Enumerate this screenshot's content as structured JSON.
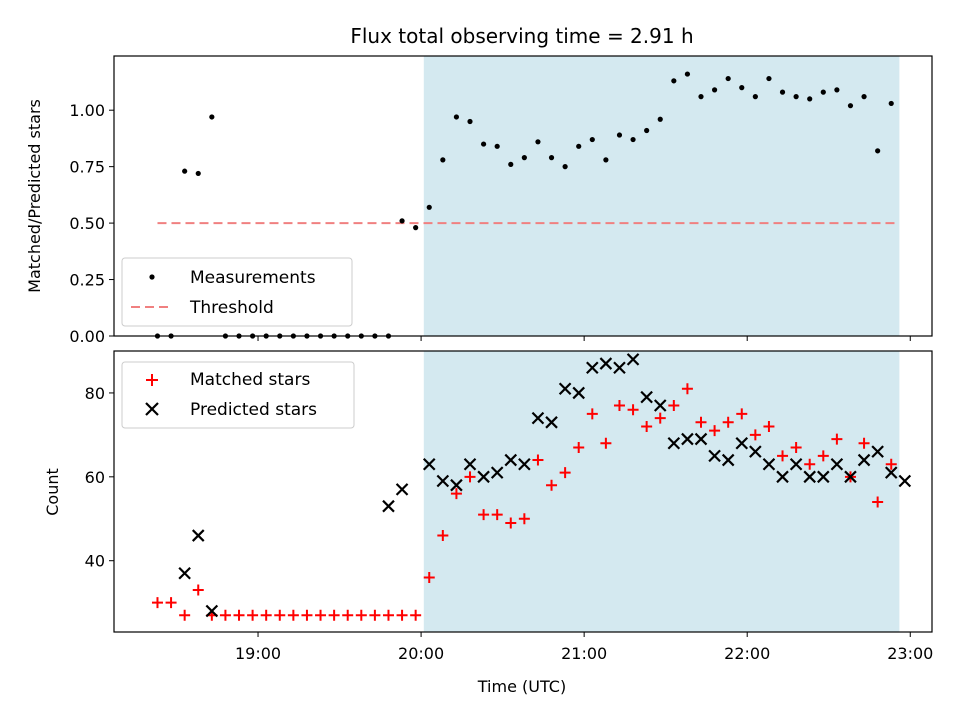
{
  "chart_data": [
    {
      "type": "scatter",
      "title": "Flux total observing time = 2.91 h",
      "xlabel": "",
      "ylabel": "Matched/Predicted stars",
      "xlim": [
        "18:07",
        "23:08"
      ],
      "ylim": [
        0,
        1.24
      ],
      "yticks": [
        0.0,
        0.25,
        0.5,
        0.75,
        1.0
      ],
      "ytick_labels": [
        "0.00",
        "0.25",
        "0.50",
        "0.75",
        "1.00"
      ],
      "grid": false,
      "legend": {
        "placement": "lower-left",
        "entries": [
          "Measurements",
          "Threshold"
        ]
      },
      "shaded_span": {
        "x_start": "20:01",
        "x_end": "22:56",
        "color": "#d4e9f0"
      },
      "threshold": {
        "name": "Threshold",
        "value": 0.5,
        "x_start": "18:23",
        "x_end": "22:56",
        "color": "#f08080"
      },
      "series": [
        {
          "name": "Measurements",
          "color": "#000000",
          "x": [
            "18:23",
            "18:28",
            "18:33",
            "18:38",
            "18:43",
            "18:48",
            "18:53",
            "18:58",
            "19:03",
            "19:08",
            "19:13",
            "19:18",
            "19:23",
            "19:28",
            "19:33",
            "19:38",
            "19:43",
            "19:48",
            "19:53",
            "19:58",
            "20:03",
            "20:08",
            "20:13",
            "20:18",
            "20:23",
            "20:28",
            "20:33",
            "20:38",
            "20:43",
            "20:48",
            "20:53",
            "20:58",
            "21:03",
            "21:08",
            "21:13",
            "21:18",
            "21:23",
            "21:28",
            "21:33",
            "21:38",
            "21:43",
            "21:48",
            "21:53",
            "21:58",
            "22:03",
            "22:08",
            "22:13",
            "22:18",
            "22:23",
            "22:28",
            "22:33",
            "22:38",
            "22:43",
            "22:48",
            "22:53"
          ],
          "y": [
            0.0,
            0.0,
            0.73,
            0.72,
            0.97,
            0.0,
            0.0,
            0.0,
            0.0,
            0.0,
            0.0,
            0.0,
            0.0,
            0.0,
            0.0,
            0.0,
            0.0,
            0.0,
            0.51,
            0.48,
            0.57,
            0.78,
            0.97,
            0.95,
            0.85,
            0.84,
            0.76,
            0.79,
            0.86,
            0.79,
            0.75,
            0.84,
            0.87,
            0.78,
            0.89,
            0.87,
            0.91,
            0.96,
            1.13,
            1.16,
            1.06,
            1.09,
            1.14,
            1.1,
            1.06,
            1.14,
            1.08,
            1.06,
            1.05,
            1.08,
            1.09,
            1.02,
            1.06,
            0.82,
            1.03
          ]
        }
      ]
    },
    {
      "type": "scatter",
      "title": "",
      "xlabel": "Time (UTC)",
      "ylabel": "Count",
      "xlim": [
        "18:07",
        "23:08"
      ],
      "ylim": [
        23,
        90
      ],
      "xticks": [
        "19:00",
        "20:00",
        "21:00",
        "22:00",
        "23:00"
      ],
      "yticks": [
        40,
        60,
        80
      ],
      "grid": false,
      "legend": {
        "placement": "top-left",
        "entries": [
          "Matched stars",
          "Predicted stars"
        ]
      },
      "shaded_span": {
        "x_start": "20:01",
        "x_end": "22:56",
        "color": "#d4e9f0"
      },
      "series": [
        {
          "name": "Matched stars",
          "marker": "+",
          "color": "#ff0000",
          "x": [
            "18:23",
            "18:28",
            "18:33",
            "18:38",
            "18:43",
            "18:48",
            "18:53",
            "18:58",
            "19:03",
            "19:08",
            "19:13",
            "19:18",
            "19:23",
            "19:28",
            "19:33",
            "19:38",
            "19:43",
            "19:48",
            "19:53",
            "19:58",
            "20:03",
            "20:08",
            "20:13",
            "20:18",
            "20:23",
            "20:28",
            "20:33",
            "20:38",
            "20:43",
            "20:48",
            "20:53",
            "20:58",
            "21:03",
            "21:08",
            "21:13",
            "21:18",
            "21:23",
            "21:28",
            "21:33",
            "21:38",
            "21:43",
            "21:48",
            "21:53",
            "21:58",
            "22:03",
            "22:08",
            "22:13",
            "22:18",
            "22:23",
            "22:28",
            "22:33",
            "22:38",
            "22:43",
            "22:48",
            "22:53"
          ],
          "y": [
            30,
            30,
            27,
            33,
            27,
            27,
            27,
            27,
            27,
            27,
            27,
            27,
            27,
            27,
            27,
            27,
            27,
            27,
            27,
            27,
            36,
            46,
            56,
            60,
            51,
            51,
            49,
            50,
            64,
            58,
            61,
            67,
            75,
            68,
            77,
            76,
            72,
            74,
            77,
            81,
            73,
            71,
            73,
            75,
            70,
            72,
            65,
            67,
            63,
            65,
            69,
            60,
            68,
            54,
            63
          ]
        },
        {
          "name": "Predicted stars",
          "marker": "x",
          "color": "#000000",
          "x": [
            "18:33",
            "18:38",
            "18:43",
            "19:48",
            "19:53",
            "20:03",
            "20:08",
            "20:13",
            "20:18",
            "20:23",
            "20:28",
            "20:33",
            "20:38",
            "20:43",
            "20:48",
            "20:53",
            "20:58",
            "21:03",
            "21:08",
            "21:13",
            "21:18",
            "21:23",
            "21:28",
            "21:33",
            "21:38",
            "21:43",
            "21:48",
            "21:53",
            "21:58",
            "22:03",
            "22:08",
            "22:13",
            "22:18",
            "22:23",
            "22:28",
            "22:33",
            "22:38",
            "22:43",
            "22:48",
            "22:53",
            "22:58"
          ],
          "y": [
            37,
            46,
            28,
            53,
            57,
            63,
            59,
            58,
            63,
            60,
            61,
            64,
            63,
            74,
            73,
            81,
            80,
            86,
            87,
            86,
            88,
            79,
            77,
            68,
            69,
            69,
            65,
            64,
            68,
            66,
            63,
            60,
            63,
            60,
            60,
            63,
            60,
            64,
            66,
            61,
            59
          ]
        }
      ]
    }
  ]
}
